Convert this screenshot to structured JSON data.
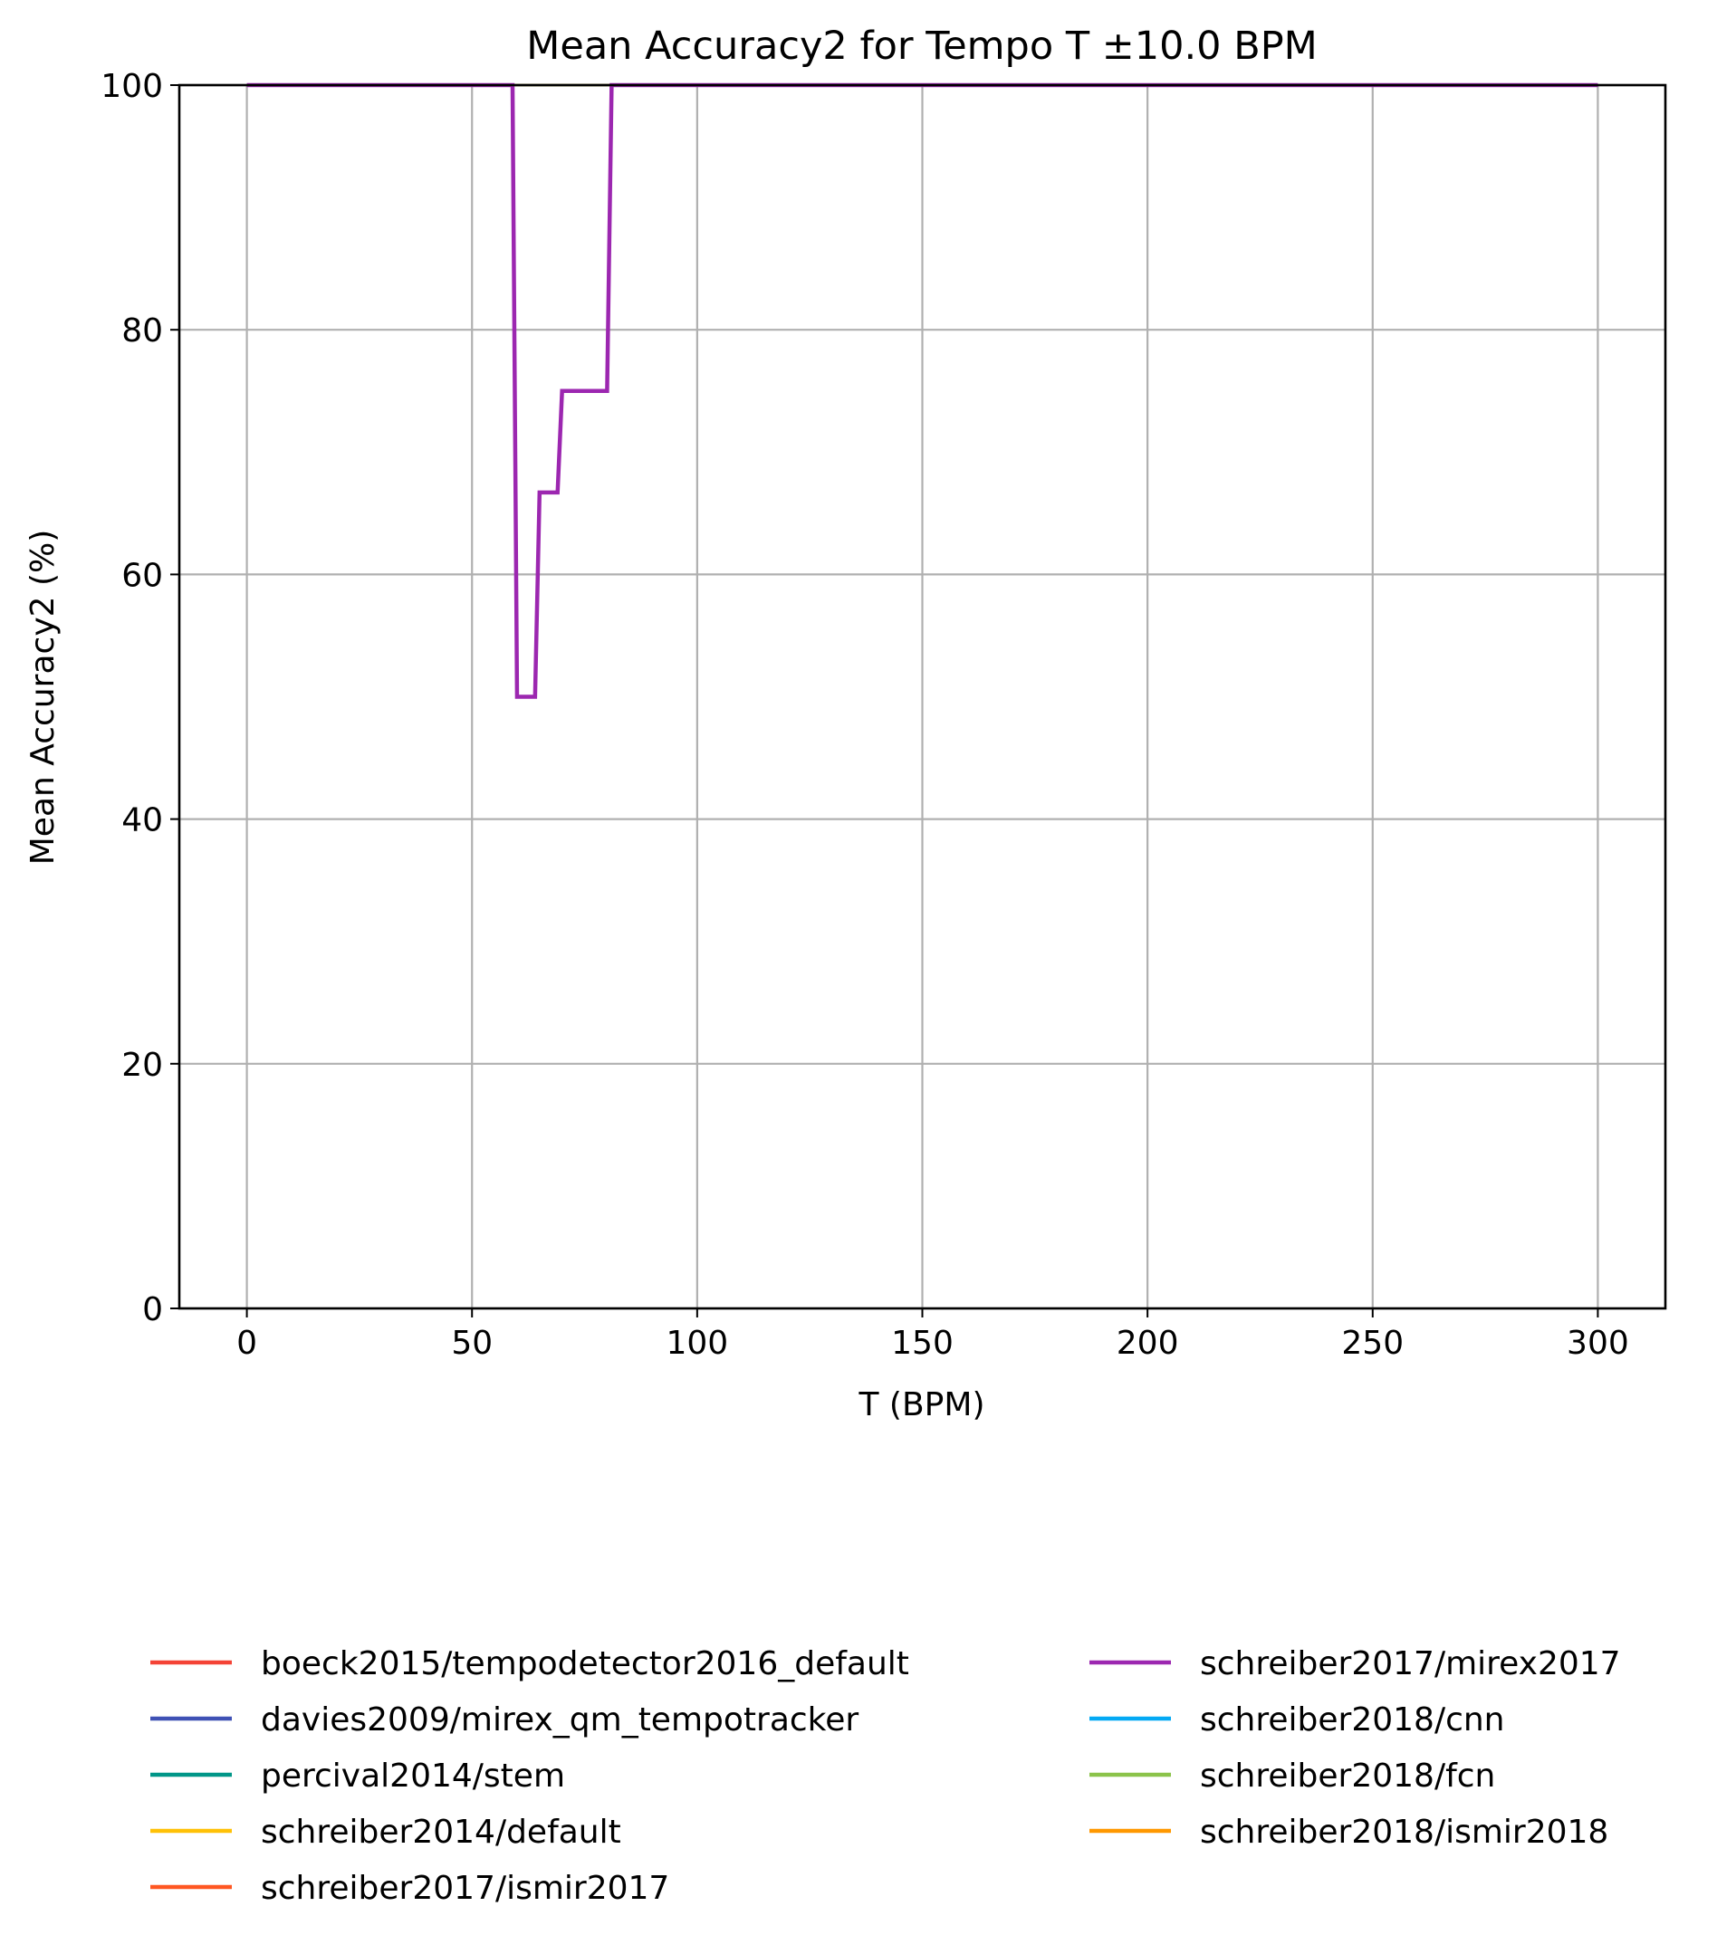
{
  "chart_data": {
    "type": "line",
    "title": "Mean Accuracy2 for Tempo T ±10.0 BPM",
    "xlabel": "T (BPM)",
    "ylabel": "Mean Accuracy2 (%)",
    "xlim": [
      -15,
      315
    ],
    "ylim": [
      0,
      100
    ],
    "xticks": [
      0,
      50,
      100,
      150,
      200,
      250,
      300
    ],
    "yticks": [
      0,
      20,
      40,
      60,
      80,
      100
    ],
    "grid": true,
    "legend_position": "bottom",
    "series": [
      {
        "name": "boeck2015/tempodetector2016_default",
        "color": "#f44336",
        "x": [
          0,
          300
        ],
        "y": [
          100,
          100
        ]
      },
      {
        "name": "davies2009/mirex_qm_tempotracker",
        "color": "#3f51b5",
        "x": [
          0,
          300
        ],
        "y": [
          100,
          100
        ]
      },
      {
        "name": "percival2014/stem",
        "color": "#009688",
        "x": [
          0,
          300
        ],
        "y": [
          100,
          100
        ]
      },
      {
        "name": "schreiber2014/default",
        "color": "#ffc107",
        "x": [
          0,
          300
        ],
        "y": [
          100,
          100
        ]
      },
      {
        "name": "schreiber2017/ismir2017",
        "color": "#ff5722",
        "x": [
          0,
          300
        ],
        "y": [
          100,
          100
        ]
      },
      {
        "name": "schreiber2017/mirex2017",
        "color": "#9c27b0",
        "x": [
          0,
          59,
          60,
          61,
          62,
          63,
          64,
          65,
          66,
          67,
          68,
          69,
          70,
          71,
          72,
          73,
          74,
          75,
          76,
          77,
          78,
          79,
          80,
          81,
          300
        ],
        "y": [
          100,
          100,
          50,
          50,
          50,
          50,
          50,
          66.7,
          66.7,
          66.7,
          66.7,
          66.7,
          75,
          75,
          75,
          75,
          75,
          75,
          75,
          75,
          75,
          75,
          75,
          100,
          100
        ]
      },
      {
        "name": "schreiber2018/cnn",
        "color": "#03a9f4",
        "x": [
          0,
          300
        ],
        "y": [
          100,
          100
        ]
      },
      {
        "name": "schreiber2018/fcn",
        "color": "#8bc34a",
        "x": [
          0,
          300
        ],
        "y": [
          100,
          100
        ]
      },
      {
        "name": "schreiber2018/ismir2018",
        "color": "#ff9800",
        "x": [
          0,
          300
        ],
        "y": [
          100,
          100
        ]
      }
    ]
  }
}
